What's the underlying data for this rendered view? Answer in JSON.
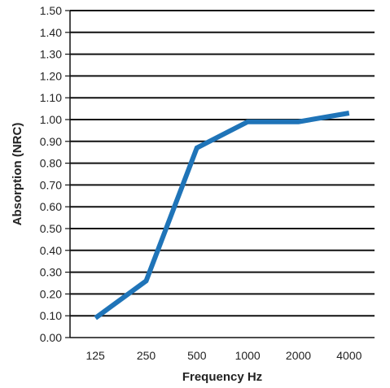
{
  "chart_data": {
    "type": "line",
    "x": [
      "125",
      "250",
      "500",
      "1000",
      "2000",
      "4000"
    ],
    "series": [
      {
        "values": [
          0.09,
          0.26,
          0.87,
          0.99,
          0.99,
          1.03
        ]
      }
    ],
    "xlabel": "Frequency Hz",
    "ylabel": "Absorption (NRC)",
    "ylim": [
      0,
      1.5
    ],
    "yticks": [
      "0.00",
      "0.10",
      "0.20",
      "0.30",
      "0.40",
      "0.50",
      "0.60",
      "0.70",
      "0.80",
      "0.90",
      "1.00",
      "1.10",
      "1.20",
      "1.30",
      "1.40",
      "1.50"
    ],
    "grid": true,
    "line_color": "#1f74b8",
    "grid_color": "#111111"
  }
}
